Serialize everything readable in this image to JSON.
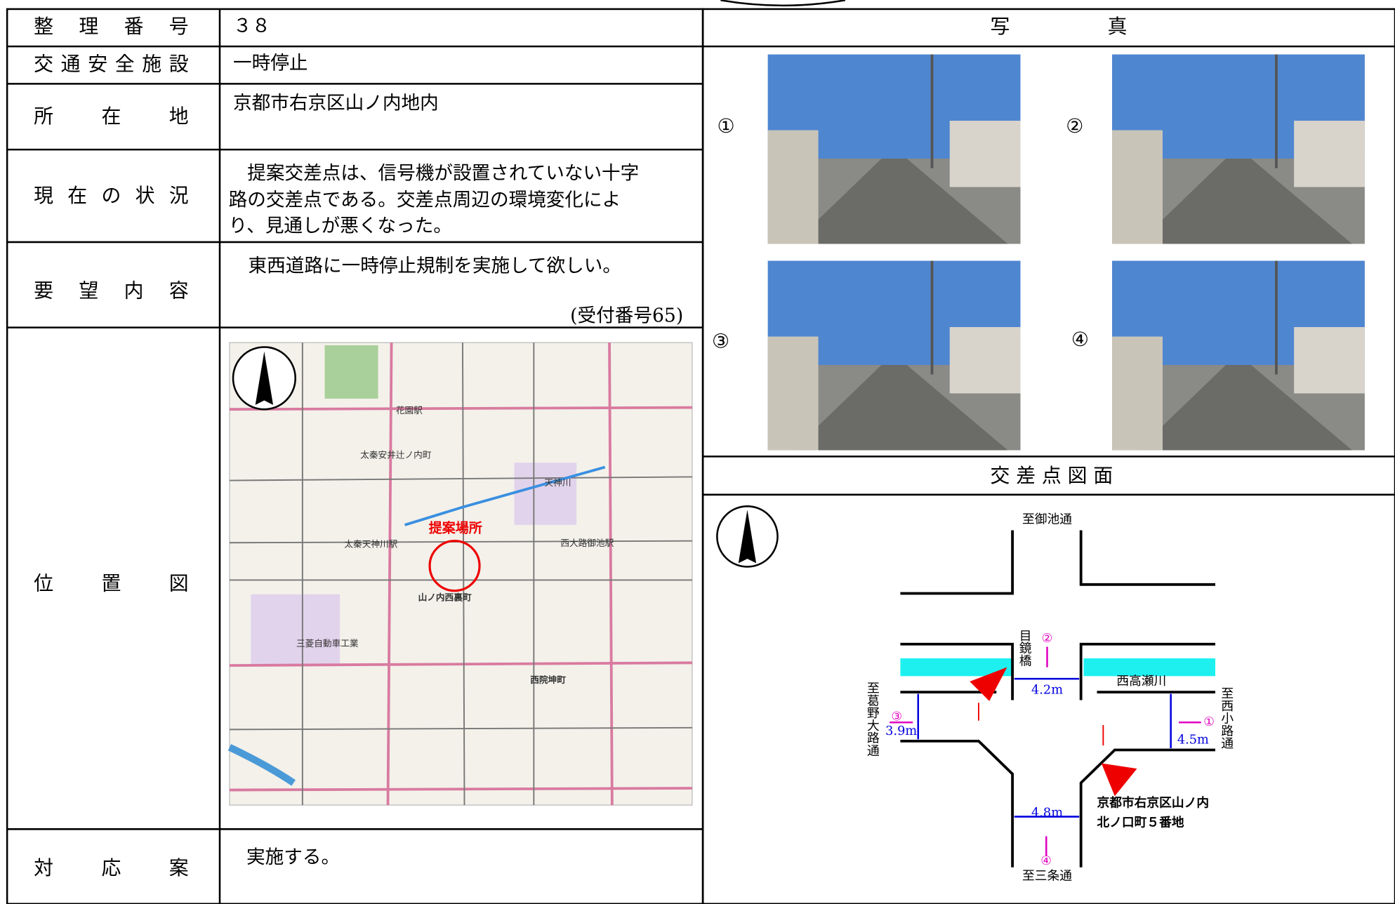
{
  "table": {
    "rows": [
      {
        "label": "整　理　番　号",
        "value": "３８"
      },
      {
        "label": "交通安全施設",
        "value": "一時停止"
      },
      {
        "label": "所　　在　　地",
        "value": "京都市右京区山ノ内地内"
      },
      {
        "label": "現　在　の　状　況",
        "lines": [
          "　提案交差点は、信号機が設置されていない十字",
          "路の交差点である。交差点周辺の環境変化によ",
          "り、見通しが悪くなった。"
        ]
      },
      {
        "label": "要　望　内　容",
        "value": "東西道路に一時停止規制を実施して欲しい。",
        "note": "(受付番号65)"
      },
      {
        "label": "位　　置　　図"
      },
      {
        "label": "対　　応　　案",
        "value": "実施する。"
      }
    ]
  },
  "map": {
    "marker": "提案場所",
    "labels": [
      "山ノ内西裏町",
      "西院坤町",
      "太秦安井辻ノ内町",
      "天神川",
      "西大路御池駅",
      "花園駅",
      "太秦天神川駅",
      "三菱自動車工業"
    ]
  },
  "photos": {
    "title": "写　　　　　真",
    "items": [
      "①",
      "②",
      "③",
      "④"
    ]
  },
  "diagram": {
    "title": "交 差 点 図 面",
    "north": "至御池通",
    "south": "至三条通",
    "west": "至葛野大路通",
    "east": "至西小路通",
    "bridge": "目鏡橋",
    "river": "西高瀬川",
    "widths": [
      "4.2m",
      "3.9m",
      "4.5m",
      "4.8m"
    ],
    "arrows": [
      "①",
      "②",
      "③",
      "④"
    ],
    "address": [
      "京都市右京区山ノ内",
      "北ノ口町５番地"
    ]
  }
}
